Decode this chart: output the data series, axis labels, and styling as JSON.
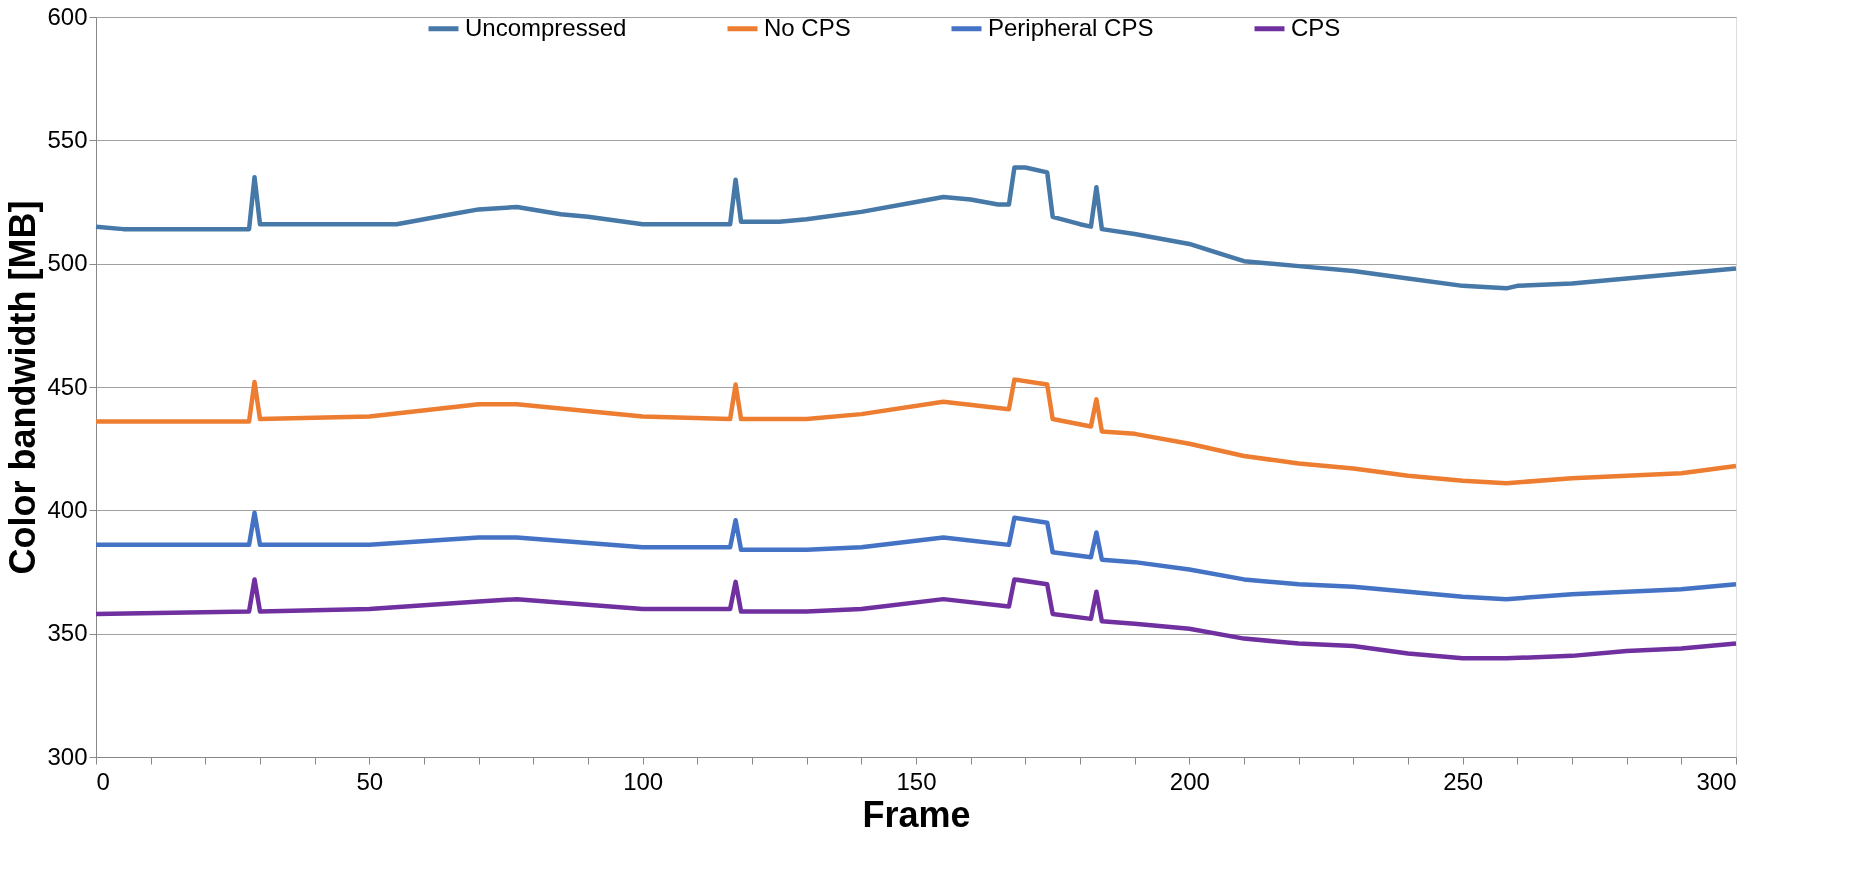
{
  "chart_data": {
    "type": "line",
    "xlabel": "Frame",
    "ylabel": "Color bandwidth [MB]",
    "xlim": [
      0,
      300
    ],
    "xticks": [
      0,
      {
        "value": 10,
        "label": null
      },
      {
        "value": 20,
        "label": null
      },
      {
        "value": 30,
        "label": null
      },
      {
        "value": 40,
        "label": null
      },
      50,
      {
        "value": 60,
        "label": null
      },
      {
        "value": 70,
        "label": null
      },
      {
        "value": 80,
        "label": null
      },
      {
        "value": 90,
        "label": null
      },
      100,
      {
        "value": 110,
        "label": null
      },
      {
        "value": 120,
        "label": null
      },
      {
        "value": 130,
        "label": null
      },
      {
        "value": 140,
        "label": null
      },
      150,
      {
        "value": 160,
        "label": null
      },
      {
        "value": 170,
        "label": null
      },
      {
        "value": 180,
        "label": null
      },
      {
        "value": 190,
        "label": null
      },
      200,
      {
        "value": 210,
        "label": null
      },
      {
        "value": 220,
        "label": null
      },
      {
        "value": 230,
        "label": null
      },
      {
        "value": 240,
        "label": null
      },
      250,
      {
        "value": 260,
        "label": null
      },
      {
        "value": 270,
        "label": null
      },
      {
        "value": 280,
        "label": null
      },
      {
        "value": 290,
        "label": null
      },
      300
    ],
    "ylim": [
      300,
      600
    ],
    "yticks": [
      300,
      350,
      400,
      450,
      500,
      550,
      600
    ],
    "grid": "y",
    "legend": "top",
    "marker": "none",
    "line_style": "solid",
    "series": [
      {
        "name": "Uncompressed",
        "color": "#4678a8",
        "x": [
          0,
          5,
          10,
          20,
          28,
          29,
          30,
          40,
          50,
          55,
          60,
          65,
          70,
          77,
          85,
          90,
          100,
          110,
          116,
          117,
          118,
          125,
          130,
          140,
          150,
          155,
          160,
          165,
          167,
          168,
          170,
          174,
          175,
          180,
          182,
          183,
          184,
          190,
          200,
          210,
          220,
          230,
          240,
          250,
          258,
          260,
          270,
          280,
          290,
          300
        ],
        "values": [
          515,
          514,
          514,
          514,
          514,
          535,
          516,
          516,
          516,
          516,
          518,
          520,
          522,
          523,
          520,
          519,
          516,
          516,
          516,
          534,
          517,
          517,
          518,
          521,
          525,
          527,
          526,
          524,
          524,
          539,
          539,
          537,
          519,
          516,
          515,
          531,
          514,
          512,
          508,
          501,
          499,
          497,
          494,
          491,
          490,
          491,
          492,
          494,
          496,
          498
        ]
      },
      {
        "name": "No CPS",
        "color": "#ed7d31",
        "x": [
          0,
          28,
          29,
          30,
          50,
          70,
          77,
          100,
          116,
          117,
          118,
          130,
          140,
          155,
          167,
          168,
          174,
          175,
          182,
          183,
          184,
          190,
          200,
          210,
          220,
          230,
          240,
          250,
          258,
          270,
          280,
          290,
          300
        ],
        "values": [
          436,
          436,
          452,
          437,
          438,
          443,
          443,
          438,
          437,
          451,
          437,
          437,
          439,
          444,
          441,
          453,
          451,
          437,
          434,
          445,
          432,
          431,
          427,
          422,
          419,
          417,
          414,
          412,
          411,
          413,
          414,
          415,
          418
        ]
      },
      {
        "name": "Peripheral CPS",
        "color": "#4472c4",
        "x": [
          0,
          28,
          29,
          30,
          50,
          70,
          77,
          100,
          116,
          117,
          118,
          130,
          140,
          155,
          167,
          168,
          174,
          175,
          182,
          183,
          184,
          190,
          200,
          210,
          220,
          230,
          240,
          250,
          258,
          270,
          280,
          290,
          300
        ],
        "values": [
          386,
          386,
          399,
          386,
          386,
          389,
          389,
          385,
          385,
          396,
          384,
          384,
          385,
          389,
          386,
          397,
          395,
          383,
          381,
          391,
          380,
          379,
          376,
          372,
          370,
          369,
          367,
          365,
          364,
          366,
          367,
          368,
          370
        ]
      },
      {
        "name": "CPS",
        "color": "#7030a0",
        "x": [
          0,
          28,
          29,
          30,
          50,
          70,
          77,
          100,
          116,
          117,
          118,
          130,
          140,
          155,
          167,
          168,
          174,
          175,
          182,
          183,
          184,
          190,
          200,
          210,
          220,
          230,
          240,
          250,
          258,
          270,
          280,
          290,
          300
        ],
        "values": [
          358,
          359,
          372,
          359,
          360,
          363,
          364,
          360,
          360,
          371,
          359,
          359,
          360,
          364,
          361,
          372,
          370,
          358,
          356,
          367,
          355,
          354,
          352,
          348,
          346,
          345,
          342,
          340,
          340,
          341,
          343,
          344,
          346
        ]
      }
    ]
  }
}
